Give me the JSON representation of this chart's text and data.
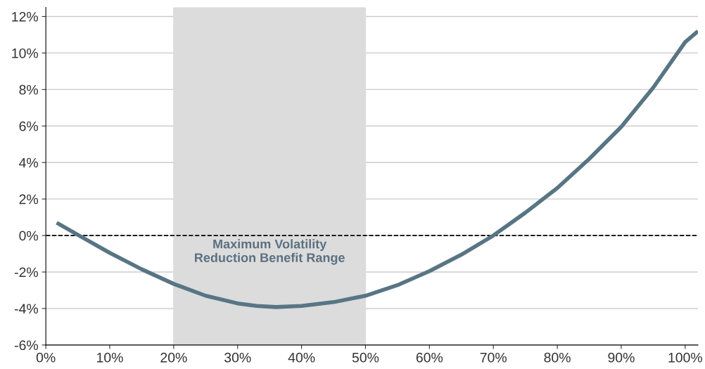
{
  "chart_data": {
    "type": "line",
    "series": [
      {
        "color": "#587584",
        "x": [
          1.7,
          5.2,
          10,
          15,
          20,
          25,
          30,
          33,
          36,
          40,
          45,
          50,
          55,
          60,
          65,
          70,
          75,
          80,
          85,
          90,
          95,
          100,
          102
        ],
        "values": [
          0.7,
          0,
          -0.95,
          -1.85,
          -2.65,
          -3.3,
          -3.72,
          -3.86,
          -3.92,
          -3.86,
          -3.65,
          -3.3,
          -2.72,
          -1.95,
          -1.05,
          0,
          1.25,
          2.6,
          4.2,
          5.95,
          8.1,
          10.6,
          11.2
        ]
      }
    ],
    "xlim": [
      0,
      102
    ],
    "ylim": [
      -6,
      12.5
    ],
    "xticks": [
      {
        "value": 0,
        "label": "0%"
      },
      {
        "value": 10,
        "label": "10%"
      },
      {
        "value": 20,
        "label": "20%"
      },
      {
        "value": 30,
        "label": "30%"
      },
      {
        "value": 40,
        "label": "40%"
      },
      {
        "value": 50,
        "label": "50%"
      },
      {
        "value": 60,
        "label": "60%"
      },
      {
        "value": 70,
        "label": "70%"
      },
      {
        "value": 80,
        "label": "80%"
      },
      {
        "value": 90,
        "label": "90%"
      },
      {
        "value": 100,
        "label": "100%"
      }
    ],
    "yticks": [
      {
        "value": -6,
        "label": "-6%"
      },
      {
        "value": -4,
        "label": "-4%"
      },
      {
        "value": -2,
        "label": "-2%"
      },
      {
        "value": 0,
        "label": "0%"
      },
      {
        "value": 2,
        "label": "2%"
      },
      {
        "value": 4,
        "label": "4%"
      },
      {
        "value": 6,
        "label": "6%"
      },
      {
        "value": 8,
        "label": "8%"
      },
      {
        "value": 10,
        "label": "10%"
      },
      {
        "value": 12,
        "label": "12%"
      }
    ],
    "grid": "y",
    "marker": "none",
    "line_style": "solid",
    "ref_lines": [
      {
        "axis": "y",
        "value": 0,
        "color": "#000000",
        "line_style": "dashed"
      }
    ],
    "bands": [
      {
        "axis": "x",
        "from": 20,
        "to": 50,
        "label": "Maximum Volatility\nReduction Benefit Range",
        "color": "#dcdcdc"
      }
    ]
  }
}
